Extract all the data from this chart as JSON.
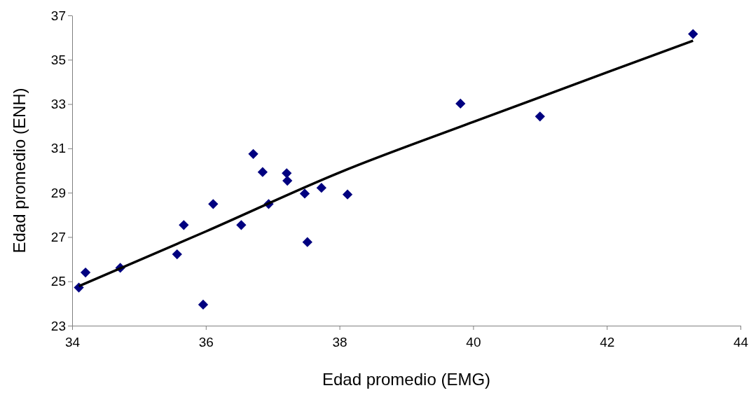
{
  "chart_data": {
    "type": "scatter",
    "xlabel": "Edad promedio (EMG)",
    "ylabel": "Edad promedio (ENH)",
    "xlim": [
      34,
      44
    ],
    "xticks": [
      34,
      36,
      38,
      40,
      42,
      44
    ],
    "ylim": [
      23,
      37
    ],
    "yticks": [
      23,
      25,
      27,
      29,
      31,
      33,
      35,
      37
    ],
    "grid": false,
    "series": [
      {
        "type": "scatter",
        "color": "#000080",
        "marker": "diamond",
        "x": [
          34.1,
          34.2,
          34.72,
          35.57,
          35.67,
          35.96,
          36.11,
          36.53,
          36.71,
          36.85,
          36.94,
          37.21,
          37.22,
          37.48,
          37.73,
          38.12,
          37.52,
          39.81,
          41.0,
          43.29
        ],
        "values": [
          24.72,
          25.4,
          25.61,
          26.22,
          27.54,
          23.95,
          28.49,
          27.54,
          30.75,
          29.93,
          28.49,
          29.88,
          29.54,
          28.96,
          29.22,
          28.92,
          26.77,
          33.02,
          32.44,
          36.16
        ]
      },
      {
        "type": "line",
        "color": "#000000",
        "line_style": "solid",
        "x": [
          34.1,
          36,
          38,
          40,
          42,
          43.29
        ],
        "values": [
          24.78,
          27.25,
          29.91,
          32.19,
          34.43,
          35.86
        ]
      }
    ]
  }
}
